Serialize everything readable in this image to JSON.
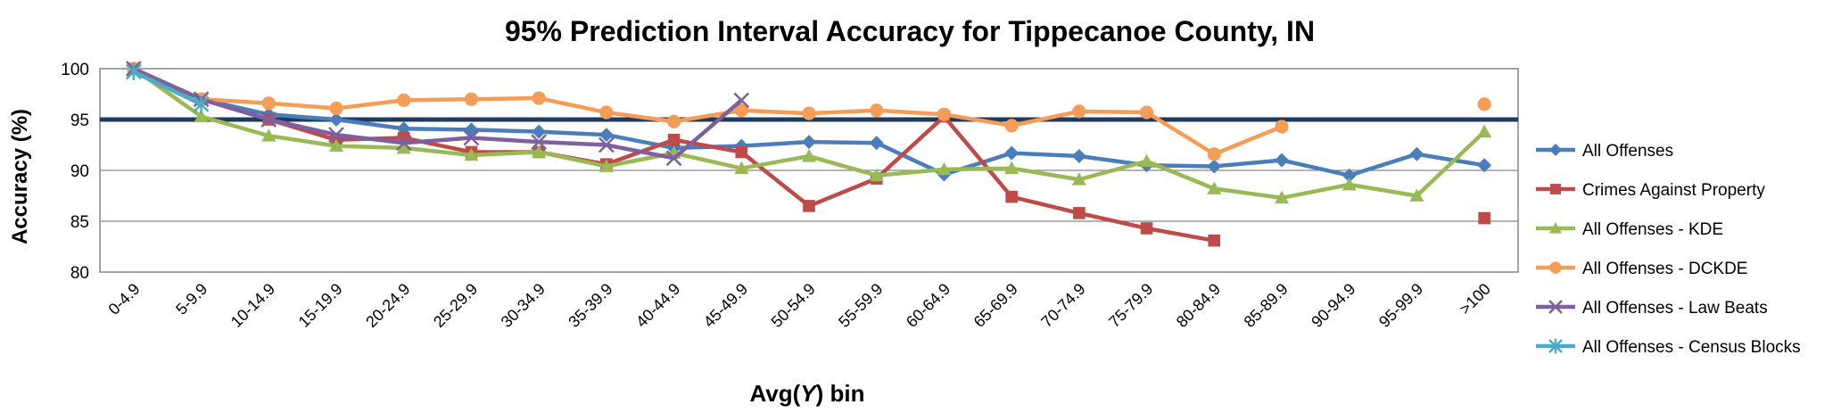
{
  "chart_data": {
    "type": "line",
    "title": "95% Prediction Interval Accuracy for Tippecanoe County, IN",
    "xlabel_prefix": "Avg(",
    "xlabel_var": "Y",
    "xlabel_suffix": ") bin",
    "ylabel": "Accuracy (%)",
    "ylim": [
      80,
      100
    ],
    "yticks": [
      80,
      85,
      90,
      95,
      100
    ],
    "reference_line": 95,
    "grid": "horizontal",
    "legend_position": "right",
    "categories": [
      "0-4.9",
      "5-9.9",
      "10-14.9",
      "15-19.9",
      "20-24.9",
      "25-29.9",
      "30-34.9",
      "35-39.9",
      "40-44.9",
      "45-49.9",
      "50-54.9",
      "55-59.9",
      "60-64.9",
      "65-69.9",
      "70-74.9",
      "75-79.9",
      "80-84.9",
      "85-89.9",
      "90-94.9",
      "95-99.9",
      ">100"
    ],
    "series": [
      {
        "name": "All Offenses",
        "color": "#4A7EBB",
        "marker": "diamond",
        "values": [
          100,
          97,
          95.5,
          95,
          94.1,
          94,
          93.8,
          93.5,
          92.2,
          92.4,
          92.8,
          92.7,
          89.6,
          91.7,
          91.4,
          90.5,
          90.4,
          91,
          89.5,
          91.6,
          90.5
        ]
      },
      {
        "name": "Crimes Against Property",
        "color": "#BE4B48",
        "marker": "square",
        "values": [
          100,
          97,
          95,
          93,
          93.2,
          91.8,
          91.8,
          90.6,
          93,
          91.8,
          86.5,
          89.2,
          95.3,
          87.4,
          85.8,
          84.3,
          83.1,
          null,
          null,
          null,
          85.3
        ]
      },
      {
        "name": "All Offenses - KDE",
        "color": "#98B954",
        "marker": "triangle",
        "values": [
          100,
          95.3,
          93.4,
          92.4,
          92.2,
          91.5,
          91.8,
          90.4,
          91.7,
          90.2,
          91.4,
          89.5,
          90.1,
          90.2,
          89.1,
          90.9,
          88.2,
          87.3,
          88.6,
          87.5,
          93.8
        ]
      },
      {
        "name": "All Offenses - DCKDE",
        "color": "#F59D56",
        "marker": "circle",
        "values": [
          100,
          97,
          96.6,
          96.1,
          96.9,
          97,
          97.1,
          95.7,
          94.8,
          95.9,
          95.6,
          95.9,
          95.5,
          94.4,
          95.8,
          95.7,
          91.6,
          94.3,
          null,
          null,
          96.5
        ]
      },
      {
        "name": "All Offenses - Law Beats",
        "color": "#7D60A0",
        "marker": "x",
        "values": [
          100,
          97,
          95,
          93.5,
          92.7,
          93.2,
          92.8,
          92.5,
          91.2,
          96.9,
          null,
          null,
          null,
          null,
          null,
          null,
          null,
          null,
          null,
          null,
          null
        ]
      },
      {
        "name": "All Offenses - Census Blocks",
        "color": "#4BACC6",
        "marker": "star",
        "values": [
          99.7,
          96.5,
          null,
          null,
          null,
          null,
          null,
          null,
          null,
          null,
          null,
          null,
          null,
          null,
          null,
          null,
          null,
          null,
          null,
          null,
          null
        ]
      }
    ]
  }
}
